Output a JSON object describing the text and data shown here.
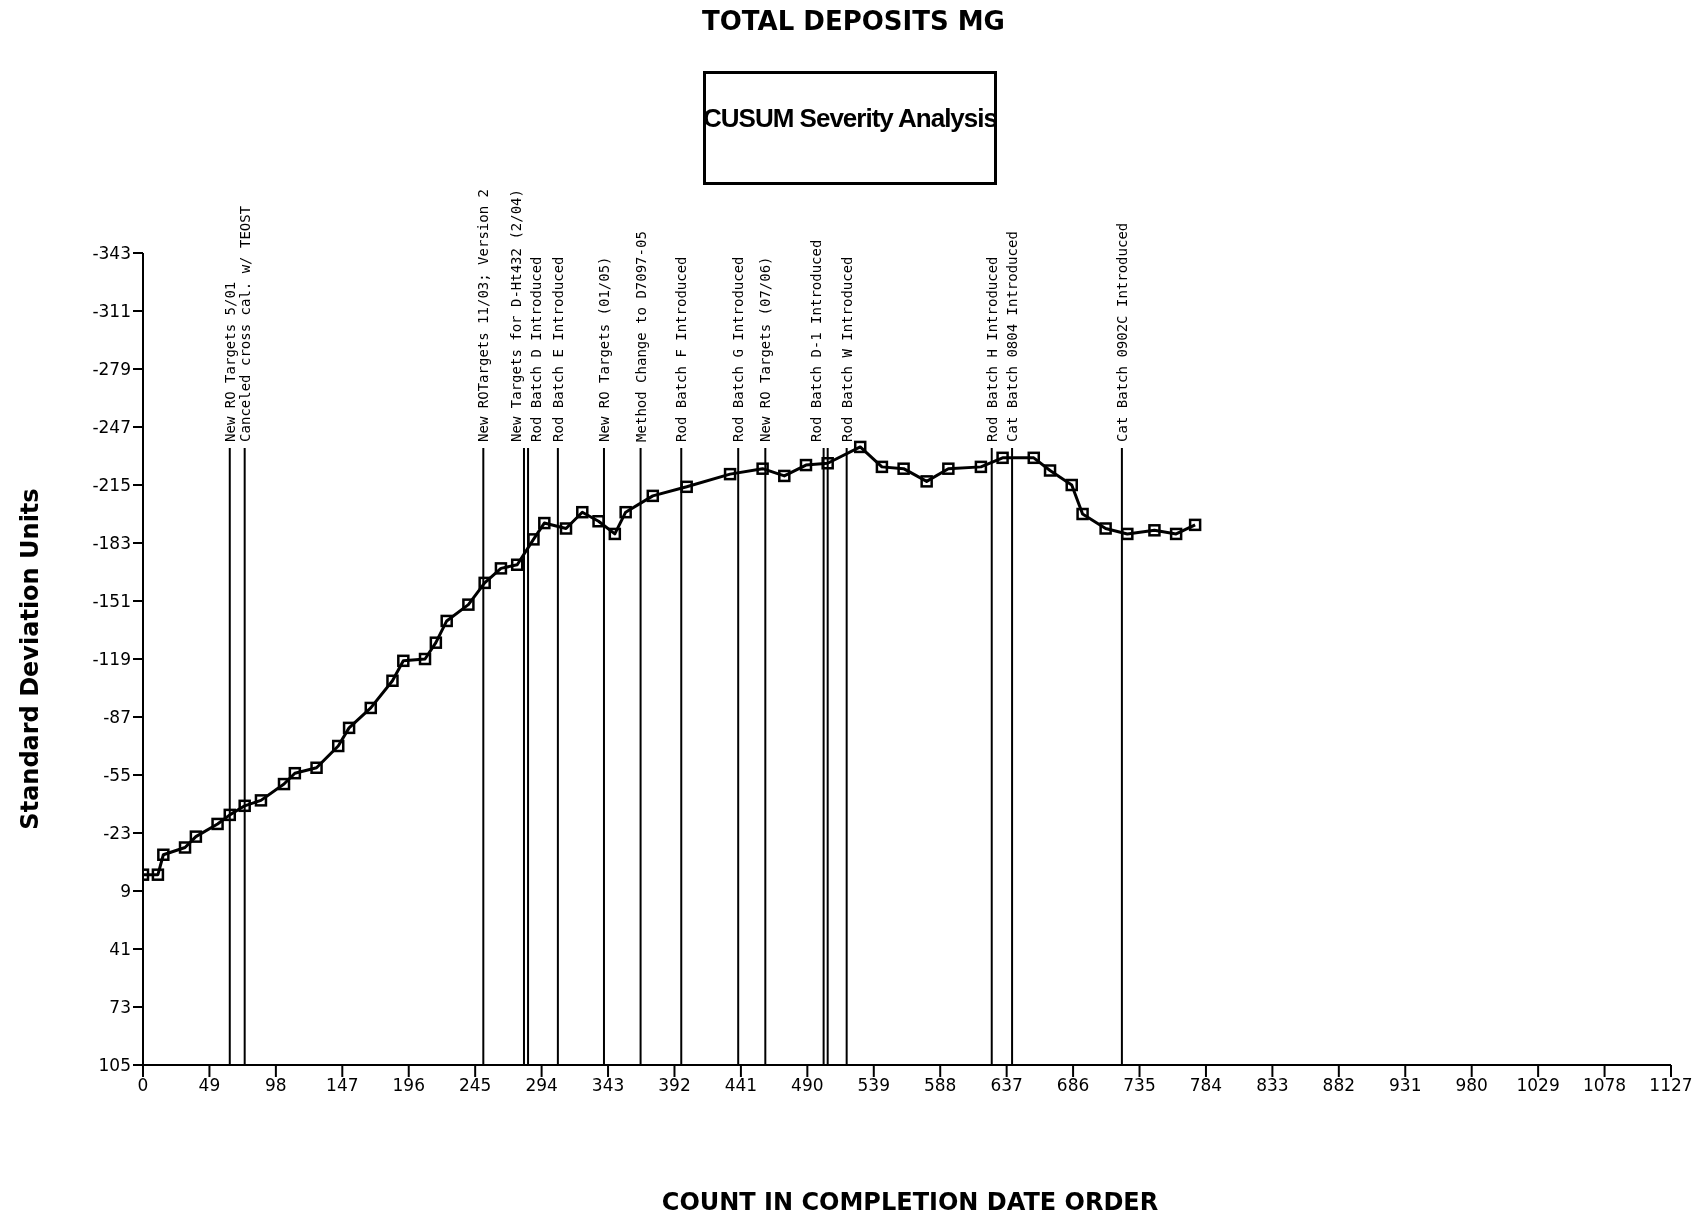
{
  "chart_data": {
    "type": "line",
    "title": "TOTAL DEPOSITS MG",
    "xlabel": "COUNT IN COMPLETION DATE ORDER",
    "ylabel": "Standard Deviation Units",
    "annotations": [
      "CUSUM Severity Analysis"
    ],
    "x": [
      0,
      11,
      15,
      31,
      39,
      55,
      64,
      75,
      87,
      104,
      112,
      128,
      144,
      152,
      168,
      184,
      192,
      208,
      216,
      224,
      240,
      252,
      264,
      276,
      288,
      296,
      312,
      324,
      336,
      348,
      356,
      376,
      401,
      433,
      457,
      473,
      489,
      505,
      529,
      545,
      561,
      578,
      594,
      618,
      634,
      657,
      669,
      685,
      693,
      710,
      726,
      746,
      762,
      776
    ],
    "series": [
      {
        "color": "#000000",
        "values": [
          0,
          0,
          -11,
          -15,
          -21,
          -28,
          -33,
          -38,
          -41,
          -50,
          -56,
          -59,
          -71,
          -81,
          -92,
          -107,
          -118,
          -119,
          -128,
          -140,
          -149,
          -161,
          -169,
          -171,
          -185,
          -194,
          -191,
          -200,
          -195,
          -188,
          -200,
          -209,
          -214,
          -221,
          -224,
          -220,
          -226,
          -227,
          -236,
          -225,
          -224,
          -217,
          -224,
          -225,
          -230,
          -230,
          -223,
          -215,
          -199,
          -191,
          -188,
          -190,
          -188,
          -193
        ]
      }
    ],
    "xlim": [
      0,
      1127
    ],
    "xticks": [
      0,
      49,
      98,
      147,
      196,
      245,
      294,
      343,
      392,
      441,
      490,
      539,
      588,
      637,
      686,
      735,
      784,
      833,
      882,
      931,
      980,
      1029,
      1078,
      1127
    ],
    "ylim": [
      105,
      -343
    ],
    "yticks": [
      -343,
      -311,
      -279,
      -247,
      -215,
      -183,
      -151,
      -119,
      -87,
      -55,
      -23,
      9,
      41,
      73,
      105
    ],
    "marker": "square",
    "line_style": "solid",
    "ref_lines": [
      {
        "axis": "x",
        "value": 64,
        "label": "New RO Targets 5/01"
      },
      {
        "axis": "x",
        "value": 75,
        "label": "Canceled cross cal. w/ TEOST"
      },
      {
        "axis": "x",
        "value": 251,
        "label": "New ROTargets 11/03; Version 2"
      },
      {
        "axis": "x",
        "value": 281,
        "label": "New Targets for D-Ht432 (2/04)"
      },
      {
        "axis": "x",
        "value": 284,
        "label": "Rod Batch D Introduced"
      },
      {
        "axis": "x",
        "value": 306,
        "label": "Rod Batch E Introduced"
      },
      {
        "axis": "x",
        "value": 340,
        "label": "New RO Targets (01/05)"
      },
      {
        "axis": "x",
        "value": 367,
        "label": "Method Change to D7097-05"
      },
      {
        "axis": "x",
        "value": 397,
        "label": "Rod Batch F Introduced"
      },
      {
        "axis": "x",
        "value": 439,
        "label": "Rod Batch G Introduced"
      },
      {
        "axis": "x",
        "value": 459,
        "label": "New RO Targets (07/06)"
      },
      {
        "axis": "x",
        "value": 502,
        "label": "Rod Batch D-1 Introduced"
      },
      {
        "axis": "x",
        "value": 505,
        "label": null
      },
      {
        "axis": "x",
        "value": 519,
        "label": "Rod Batch W Introduced"
      },
      {
        "axis": "x",
        "value": 626,
        "label": "Rod Batch H Introduced"
      },
      {
        "axis": "x",
        "value": 641,
        "label": "Cat Batch 0804 Introduced"
      },
      {
        "axis": "x",
        "value": 722,
        "label": "Cat Batch 0902C Introduced"
      }
    ]
  }
}
